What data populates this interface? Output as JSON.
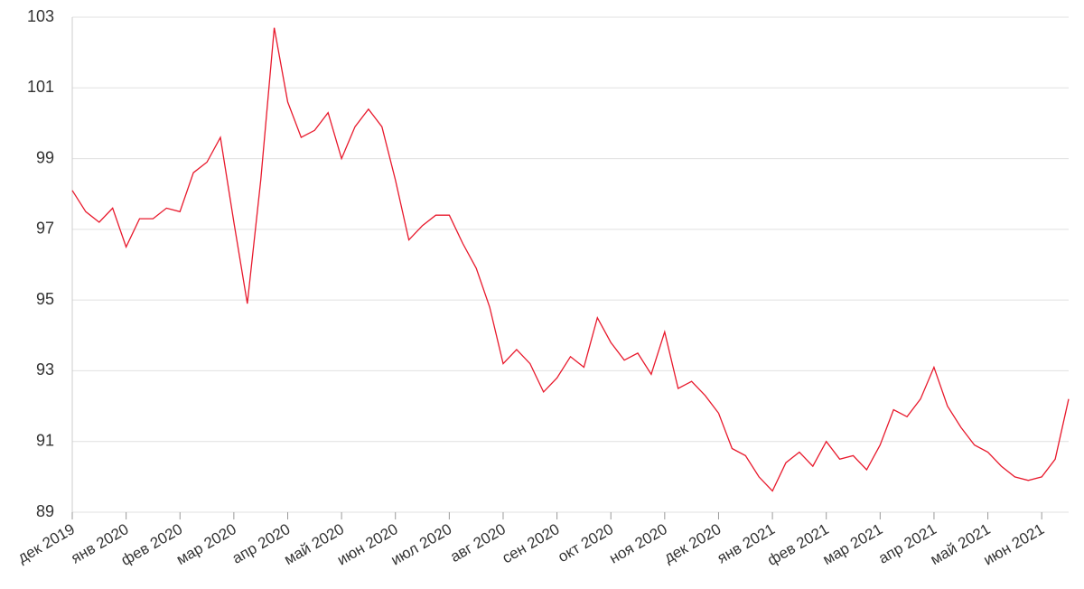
{
  "chart_data": {
    "type": "line",
    "categories": [
      "дек 2019",
      null,
      null,
      null,
      "янв 2020",
      null,
      null,
      null,
      "фев 2020",
      null,
      null,
      null,
      "мар 2020",
      null,
      null,
      null,
      "апр 2020",
      null,
      null,
      null,
      "май 2020",
      null,
      null,
      null,
      "июн 2020",
      null,
      null,
      null,
      "июл 2020",
      null,
      null,
      null,
      "авг 2020",
      null,
      null,
      null,
      "сен 2020",
      null,
      null,
      null,
      "окт 2020",
      null,
      null,
      null,
      "ноя 2020",
      null,
      null,
      null,
      "дек 2020",
      null,
      null,
      null,
      "янв 2021",
      null,
      null,
      null,
      "фев 2021",
      null,
      null,
      null,
      "мар 2021",
      null,
      null,
      null,
      "апр 2021",
      null,
      null,
      null,
      "май 2021",
      null,
      null,
      null,
      "июн 2021",
      null,
      null
    ],
    "values": [
      98.1,
      97.5,
      97.2,
      97.6,
      96.5,
      97.3,
      97.3,
      97.6,
      97.5,
      98.6,
      98.9,
      99.6,
      97.2,
      94.9,
      98.4,
      102.7,
      100.6,
      99.6,
      99.8,
      100.3,
      99.0,
      99.9,
      100.4,
      99.9,
      98.4,
      96.7,
      97.1,
      97.4,
      97.4,
      96.6,
      95.9,
      94.8,
      93.2,
      93.6,
      93.2,
      92.4,
      92.8,
      93.4,
      93.1,
      94.5,
      93.8,
      93.3,
      93.5,
      92.9,
      94.1,
      92.5,
      92.7,
      92.3,
      91.8,
      90.8,
      90.6,
      90.0,
      89.6,
      90.4,
      90.7,
      90.3,
      91.0,
      90.5,
      90.6,
      90.2,
      90.9,
      91.9,
      91.7,
      92.2,
      93.1,
      92.0,
      91.4,
      90.9,
      90.7,
      90.3,
      90.0,
      89.9,
      90.0,
      90.5,
      92.2
    ],
    "color": "#e8192c",
    "ylim": [
      89,
      103
    ],
    "yticks": [
      89,
      91,
      93,
      95,
      97,
      99,
      101,
      103
    ],
    "grid": true
  }
}
